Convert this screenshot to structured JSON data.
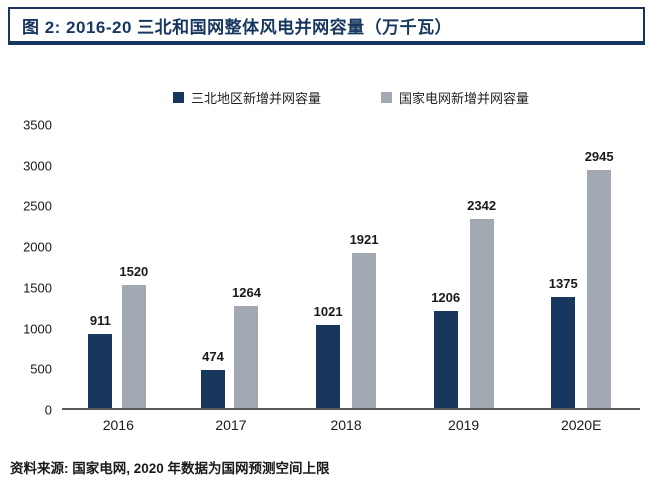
{
  "title": "图 2:  2016-20 三北和国网整体风电并网容量（万千瓦）",
  "legend": [
    {
      "label": "三北地区新增并网容量",
      "color": "#17375E"
    },
    {
      "label": "国家电网新增并网容量",
      "color": "#A3A9B3"
    }
  ],
  "footer": "资料来源: 国家电网, 2020 年数据为国网预测空间上限",
  "chart_data": {
    "type": "bar",
    "title": "2016-20 三北和国网整体风电并网容量（万千瓦）",
    "categories": [
      "2016",
      "2017",
      "2018",
      "2019",
      "2020E"
    ],
    "series": [
      {
        "name": "三北地区新增并网容量",
        "color": "#17375E",
        "values": [
          911,
          474,
          1021,
          1206,
          1375
        ]
      },
      {
        "name": "国家电网新增并网容量",
        "color": "#A3A9B3",
        "values": [
          1520,
          1264,
          1921,
          2342,
          2945
        ]
      }
    ],
    "xlabel": "",
    "ylabel": "",
    "ylim": [
      0,
      3500
    ],
    "ytick_step": 500,
    "grid": false,
    "legend_position": "top",
    "value_labels": true
  }
}
